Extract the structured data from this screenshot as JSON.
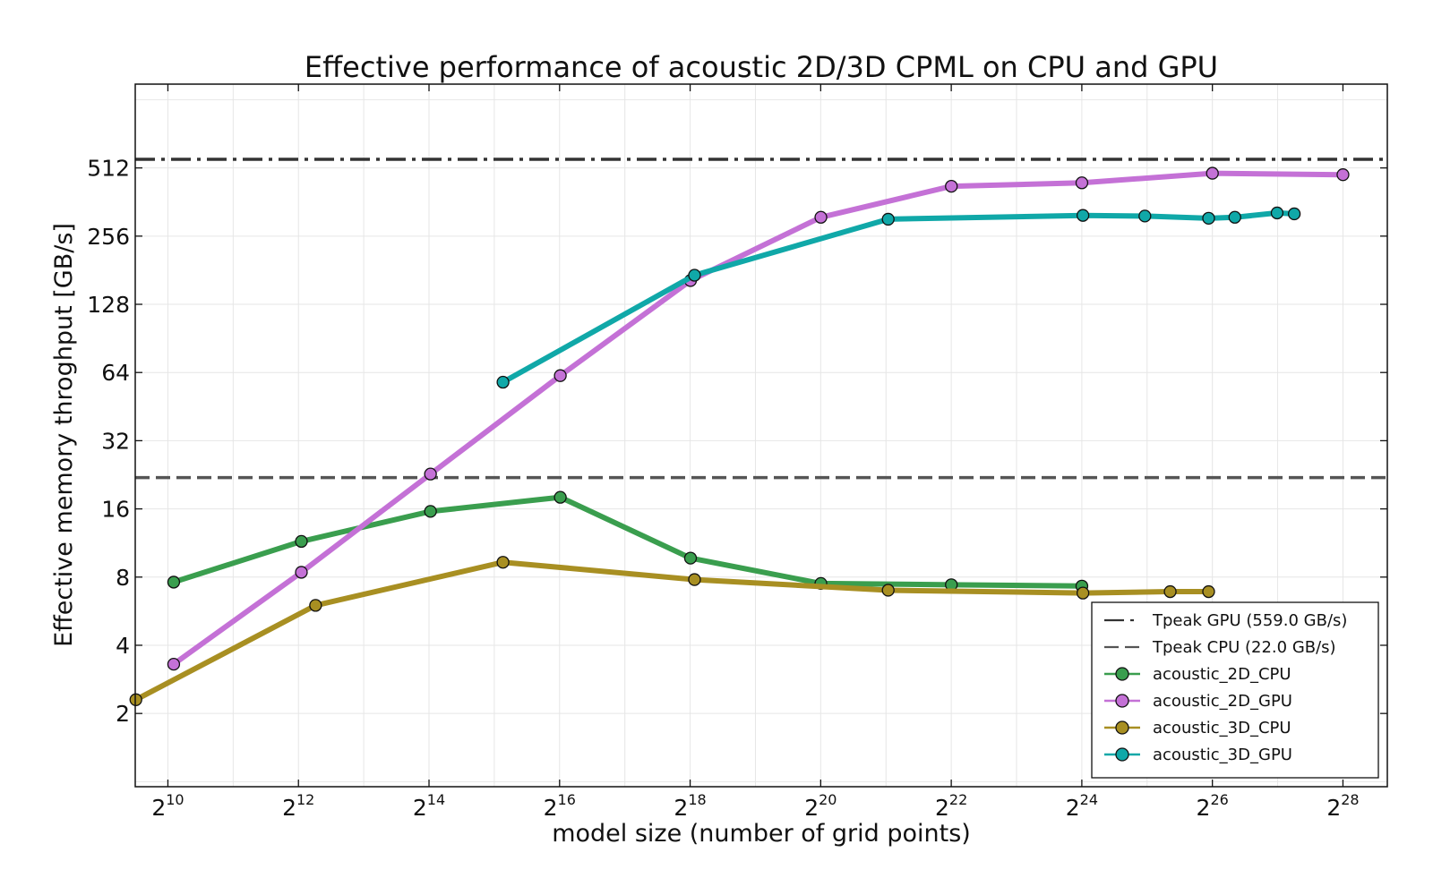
{
  "chart_data": {
    "type": "line",
    "title": "Effective performance of acoustic 2D/3D CPML on CPU and GPU",
    "xlabel": "model size (number of grid points)",
    "ylabel": "Effective memory throghput [GB/s]",
    "x_scale": "log2",
    "y_scale": "log2",
    "x_ticks": [
      {
        "base": "2",
        "exp": "10",
        "value": 1024
      },
      {
        "base": "2",
        "exp": "12",
        "value": 4096
      },
      {
        "base": "2",
        "exp": "14",
        "value": 16384
      },
      {
        "base": "2",
        "exp": "16",
        "value": 65536
      },
      {
        "base": "2",
        "exp": "18",
        "value": 262144
      },
      {
        "base": "2",
        "exp": "20",
        "value": 1048576
      },
      {
        "base": "2",
        "exp": "22",
        "value": 4194304
      },
      {
        "base": "2",
        "exp": "24",
        "value": 16777216
      },
      {
        "base": "2",
        "exp": "26",
        "value": 67108864
      },
      {
        "base": "2",
        "exp": "28",
        "value": 268435456
      }
    ],
    "y_ticks": [
      "2",
      "4",
      "8",
      "16",
      "32",
      "64",
      "128",
      "256",
      "512"
    ],
    "xlim": [
      724,
      430000000
    ],
    "ylim": [
      0.95,
      1200
    ],
    "grid": true,
    "legend_position": "lower-right",
    "reference_lines": [
      {
        "label": "Tpeak GPU (559.0 GB/s)",
        "value": 559.0,
        "style": "dashdot",
        "color": "#333333"
      },
      {
        "label": "Tpeak CPU (22.0 GB/s)",
        "value": 22.0,
        "style": "dashed",
        "color": "#555555"
      }
    ],
    "series": [
      {
        "name": "acoustic_2D_CPU",
        "color": "#3a9e4e",
        "x": [
          1089,
          4225,
          16641,
          66049,
          263169,
          1050625,
          4198401,
          16785409
        ],
        "y": [
          7.6,
          11.5,
          15.6,
          18.0,
          9.7,
          7.5,
          7.4,
          7.3
        ]
      },
      {
        "name": "acoustic_2D_GPU",
        "color": "#c471d6",
        "x": [
          1089,
          4225,
          16641,
          66049,
          263169,
          1050625,
          4198401,
          16785409,
          67125249,
          268468225
        ],
        "y": [
          3.3,
          8.4,
          22.8,
          62.0,
          163.0,
          310.0,
          425.0,
          440.0,
          485.0,
          478.0
        ]
      },
      {
        "name": "acoustic_3D_CPU",
        "color": "#a88f22",
        "x": [
          729,
          4913,
          35937,
          274625,
          2146689,
          16974593,
          42875000,
          64481201
        ],
        "y": [
          2.3,
          6.0,
          9.3,
          7.8,
          7.0,
          6.8,
          6.9,
          6.9
        ]
      },
      {
        "name": "acoustic_3D_GPU",
        "color": "#10a8a8",
        "x": [
          35937,
          274625,
          2146689,
          16974593,
          32768000,
          64481201,
          85184000,
          133432831,
          160103007
        ],
        "y": [
          58.0,
          172.0,
          304.0,
          316.0,
          314.0,
          307.0,
          310.0,
          324.0,
          321.0
        ]
      }
    ]
  }
}
